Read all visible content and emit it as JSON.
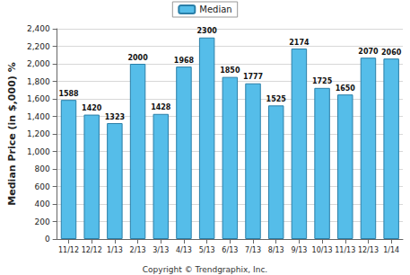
{
  "chart_data": {
    "type": "bar",
    "y_label": "Median Price (in $,000) %",
    "categories": [
      "11/12",
      "12/12",
      "1/13",
      "2/13",
      "3/13",
      "4/13",
      "5/13",
      "6/13",
      "7/13",
      "8/13",
      "9/13",
      "10/13",
      "11/13",
      "12/13",
      "1/14"
    ],
    "series": [
      {
        "name": "Median",
        "color": "#55bde9",
        "values": [
          1588,
          1420,
          1323,
          2000,
          1428,
          1968,
          2300,
          1850,
          1777,
          1525,
          2174,
          1725,
          1650,
          2070,
          2060
        ]
      }
    ],
    "ylim": [
      0,
      2400
    ],
    "yticks": [
      0,
      200,
      400,
      600,
      800,
      1000,
      1200,
      1400,
      1600,
      1800,
      2000,
      2200,
      2400
    ],
    "grid": true,
    "legend": "top",
    "data_labels": true,
    "annotations": [
      "Copyright © Trendgraphix, Inc."
    ]
  }
}
